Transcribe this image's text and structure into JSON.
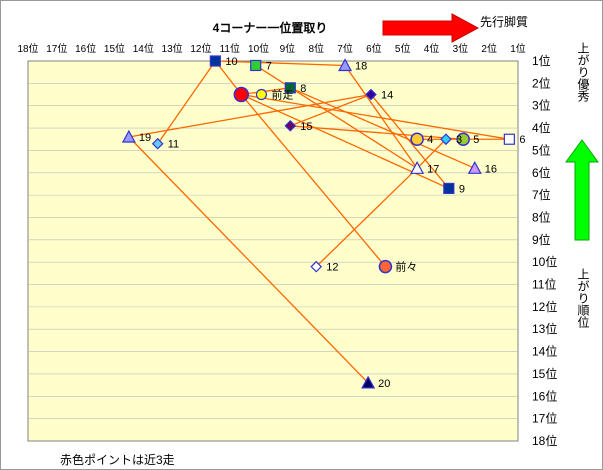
{
  "chart_data": {
    "type": "scatter",
    "title": "4コーナー一位置取り",
    "x_axis": {
      "label": "",
      "ticks": [
        "18位",
        "17位",
        "16位",
        "15位",
        "14位",
        "13位",
        "12位",
        "11位",
        "10位",
        "9位",
        "8位",
        "7位",
        "6位",
        "5位",
        "4位",
        "3位",
        "2位",
        "1位"
      ],
      "range": [
        18,
        1
      ],
      "reversed": true
    },
    "y_axis": {
      "label": "",
      "ticks": [
        "1位",
        "2位",
        "3位",
        "4位",
        "5位",
        "6位",
        "7位",
        "8位",
        "9位",
        "10位",
        "11位",
        "12位",
        "13位",
        "14位",
        "15位",
        "16位",
        "17位",
        "18位"
      ],
      "range": [
        1,
        18
      ],
      "reversed": true
    },
    "annotations": {
      "right_arrow_label": "先行脚質",
      "up_arrow_label": "上がり優秀",
      "y_side_label": "上がり順位",
      "footnote": "赤色ポイントは近3走"
    },
    "colors": {
      "plot_bg": "#ffffcc",
      "line": "#ff6600",
      "red_arrow": "#ff0000",
      "green_arrow": "#00ff00"
    },
    "points": [
      {
        "label": "10",
        "x": 11.5,
        "y": 1.0,
        "shape": "square",
        "color": "#003399"
      },
      {
        "label": "7",
        "x": 10.1,
        "y": 1.2,
        "shape": "square",
        "color": "#33cc33"
      },
      {
        "label": "18",
        "x": 7.0,
        "y": 1.2,
        "shape": "triangle",
        "color": "#9999ff"
      },
      {
        "label": "8",
        "x": 8.9,
        "y": 2.2,
        "shape": "square",
        "color": "#006633"
      },
      {
        "label": "前走",
        "x": 10.6,
        "y": 2.5,
        "shape": "circle-large",
        "color": "#ff0000"
      },
      {
        "label": "前走",
        "x": 9.9,
        "y": 2.5,
        "shape": "circle-small",
        "color": "#ffff00"
      },
      {
        "label": "14",
        "x": 6.1,
        "y": 2.5,
        "shape": "diamond",
        "color": "#330099"
      },
      {
        "label": "15",
        "x": 8.9,
        "y": 3.9,
        "shape": "diamond",
        "color": "#660066"
      },
      {
        "label": "19",
        "x": 14.5,
        "y": 4.4,
        "shape": "triangle",
        "color": "#9999ff"
      },
      {
        "label": "11",
        "x": 13.5,
        "y": 4.7,
        "shape": "diamond",
        "color": "#66ccff"
      },
      {
        "label": "4",
        "x": 4.5,
        "y": 4.5,
        "shape": "circle",
        "color": "#ffcc33"
      },
      {
        "label": "3",
        "x": 3.5,
        "y": 4.5,
        "shape": "diamond",
        "color": "#33ccff"
      },
      {
        "label": "5",
        "x": 2.9,
        "y": 4.5,
        "shape": "circle",
        "color": "#99cc33"
      },
      {
        "label": "6",
        "x": 1.3,
        "y": 4.5,
        "shape": "square",
        "color": "#ffffff"
      },
      {
        "label": "17",
        "x": 4.5,
        "y": 5.8,
        "shape": "triangle",
        "color": "#ffffff"
      },
      {
        "label": "16",
        "x": 2.5,
        "y": 5.8,
        "shape": "triangle",
        "color": "#cc99ff"
      },
      {
        "label": "9",
        "x": 3.4,
        "y": 6.7,
        "shape": "square",
        "color": "#003399"
      },
      {
        "label": "12",
        "x": 8.0,
        "y": 10.2,
        "shape": "diamond",
        "color": "#ffffff"
      },
      {
        "label": "前々",
        "x": 5.6,
        "y": 10.2,
        "shape": "circle",
        "color": "#ff6633"
      },
      {
        "label": "20",
        "x": 6.2,
        "y": 15.4,
        "shape": "triangle",
        "color": "#000066"
      }
    ],
    "lines": [
      [
        13.5,
        4.7,
        11.5,
        1.0
      ],
      [
        14.5,
        4.4,
        6.2,
        15.4
      ],
      [
        14.5,
        4.4,
        6.1,
        2.5
      ],
      [
        11.5,
        1.0,
        7.0,
        1.2
      ],
      [
        11.5,
        1.0,
        10.6,
        2.5
      ],
      [
        10.1,
        1.2,
        4.5,
        5.8
      ],
      [
        10.6,
        2.5,
        3.4,
        6.7
      ],
      [
        10.6,
        2.5,
        5.6,
        10.2
      ],
      [
        10.6,
        2.5,
        8.9,
        2.2
      ],
      [
        10.6,
        2.5,
        1.3,
        4.5
      ],
      [
        8.9,
        2.2,
        2.5,
        5.8
      ],
      [
        7.0,
        1.2,
        4.5,
        5.8
      ],
      [
        8.9,
        3.9,
        6.1,
        2.5
      ],
      [
        8.9,
        3.9,
        2.9,
        4.5
      ],
      [
        6.1,
        2.5,
        3.4,
        6.7
      ],
      [
        8.0,
        10.2,
        4.5,
        5.8
      ],
      [
        4.5,
        5.8,
        3.5,
        4.5
      ],
      [
        4.5,
        4.5,
        2.9,
        4.5
      ],
      [
        2.9,
        4.5,
        1.3,
        4.5
      ]
    ]
  }
}
